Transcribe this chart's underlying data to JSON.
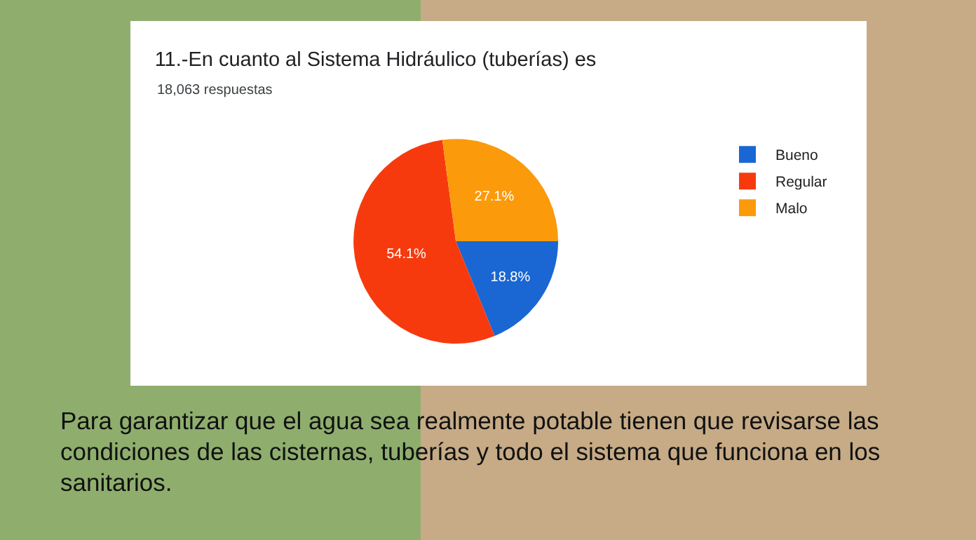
{
  "chart_data": {
    "type": "pie",
    "title": "11.-En cuanto al Sistema Hidráulico (tuberías) es",
    "subtitle": "18,063 respuestas",
    "categories": [
      "Bueno",
      "Regular",
      "Malo"
    ],
    "values": [
      18.8,
      54.1,
      27.1
    ],
    "colors": [
      "#1a66d2",
      "#f73a0e",
      "#fb9a0b"
    ],
    "value_labels": [
      "18.8%",
      "54.1%",
      "27.1%"
    ],
    "legend": "right",
    "annotations": [
      "Para garantizar que el agua sea realmente potable tienen que revisarse las condiciones de las cisternas, tuberías y todo el sistema que funciona en los sanitarios."
    ]
  }
}
